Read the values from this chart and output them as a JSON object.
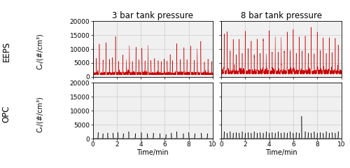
{
  "col_titles": [
    "3 bar tank pressure",
    "8 bar tank pressure"
  ],
  "row_labels": [
    "EEPS",
    "OPC"
  ],
  "ylabel_inner": "Cₙ/(#/cm³)",
  "xlabel": "Time/min",
  "xlim": [
    0,
    10
  ],
  "ylim": [
    0,
    20000
  ],
  "yticks": [
    0,
    5000,
    10000,
    15000,
    20000
  ],
  "xticks": [
    0,
    2,
    4,
    6,
    8,
    10
  ],
  "eeps_color": "#cc0000",
  "opc_color": "#000000",
  "grid_color": "#cccccc",
  "background_color": "#f0f0f0",
  "title_fontsize": 8.5,
  "label_fontsize": 7,
  "tick_fontsize": 6.5,
  "row_label_fontsize": 8.5
}
